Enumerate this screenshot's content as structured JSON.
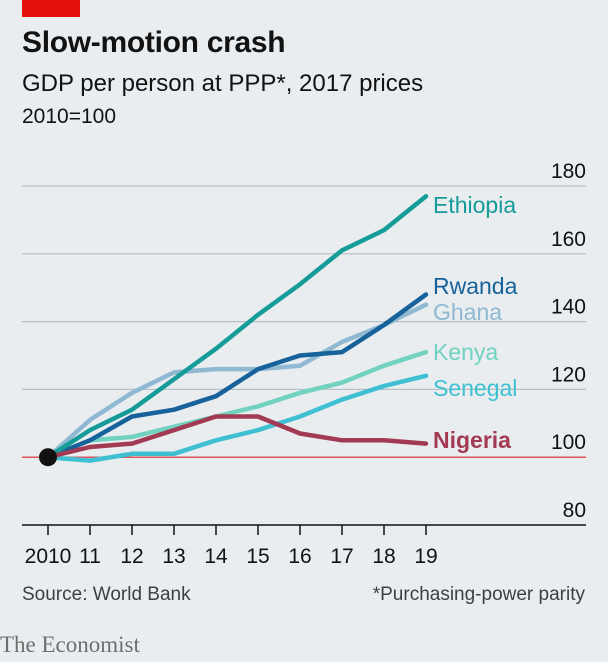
{
  "header": {
    "title": "Slow-motion crash",
    "subtitle": "GDP per person at PPP*, 2017 prices",
    "index_note": "2010=100"
  },
  "footer": {
    "source": "Source: World Bank",
    "note": "*Purchasing-power parity",
    "brand": "The Economist"
  },
  "colors": {
    "background": "#e9edf0",
    "brand_red": "#e3120b",
    "baseline": "#e0535b",
    "grid": "#b7c0c6",
    "ethiopia": "#169c98",
    "rwanda": "#17629a",
    "ghana": "#8fb9d2",
    "kenya": "#71d2c0",
    "senegal": "#3ec0d2",
    "nigeria": "#a33a53"
  },
  "chart_data": {
    "type": "line",
    "title": "Slow-motion crash",
    "subtitle": "GDP per person at PPP*, 2017 prices",
    "ylabel": "2010=100",
    "x": [
      "2010",
      "11",
      "12",
      "13",
      "14",
      "15",
      "16",
      "17",
      "18",
      "19"
    ],
    "ylim": [
      80,
      180
    ],
    "yticks": [
      "80",
      "100",
      "120",
      "140",
      "160",
      "180"
    ],
    "grid": true,
    "legend": "direct labels at line ends (right)",
    "series": [
      {
        "name": "Ethiopia",
        "key": "ethiopia",
        "values": [
          100,
          108,
          114,
          123,
          132,
          142,
          151,
          161,
          167,
          177
        ]
      },
      {
        "name": "Rwanda",
        "key": "rwanda",
        "values": [
          100,
          105,
          112,
          114,
          118,
          126,
          130,
          131,
          139,
          148
        ]
      },
      {
        "name": "Ghana",
        "key": "ghana",
        "values": [
          100,
          111,
          119,
          125,
          126,
          126,
          127,
          134,
          139,
          145
        ]
      },
      {
        "name": "Kenya",
        "key": "kenya",
        "values": [
          100,
          105,
          106,
          109,
          112,
          115,
          119,
          122,
          127,
          131
        ]
      },
      {
        "name": "Senegal",
        "key": "senegal",
        "values": [
          100,
          99,
          101,
          101,
          105,
          108,
          112,
          117,
          121,
          124
        ]
      },
      {
        "name": "Nigeria",
        "key": "nigeria",
        "values": [
          100,
          103,
          104,
          108,
          112,
          112,
          107,
          105,
          105,
          104
        ]
      }
    ]
  }
}
